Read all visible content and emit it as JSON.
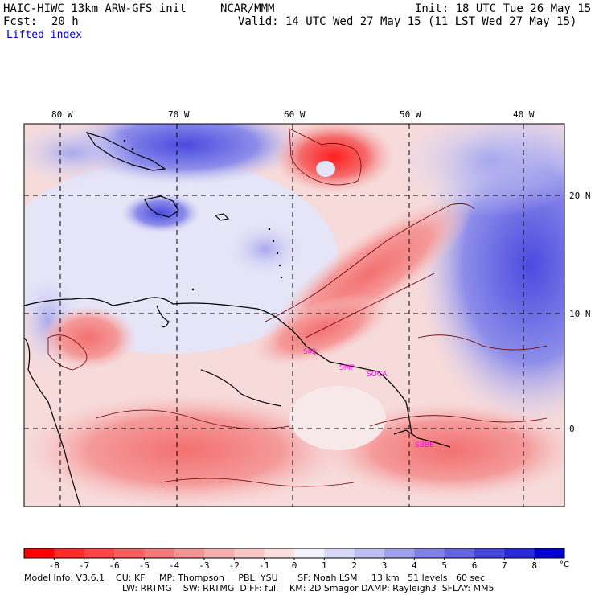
{
  "header": {
    "model_title": "HAIC-HIWC 13km ARW-GFS init",
    "institution": "NCAR/MMM",
    "init_time": "Init: 18 UTC Tue 26 May 15",
    "forecast_label": "Fcst:",
    "forecast_hours": "20 h",
    "valid_time": "Valid: 14 UTC Wed 27 May 15 (11 LST Wed 27 May 15)",
    "field_name": "Lifted index"
  },
  "map": {
    "longitude_labels": [
      "80 W",
      "70 W",
      "60 W",
      "50 W",
      "40 W"
    ],
    "latitude_labels": [
      "20 N",
      "10 N",
      "0"
    ],
    "stations": [
      "SMJ",
      "SMP",
      "SOCA",
      "SBBE"
    ],
    "colors": {
      "strong_negative": "#ff2020",
      "negative": "#f47a7a",
      "weak_negative": "#f9c0c0",
      "neutral": "#f4f2fb",
      "weak_positive": "#cfcff4",
      "positive": "#8c8ce9",
      "strong_positive": "#3a3ad8",
      "station_label": "#ff00ff"
    }
  },
  "colorbar": {
    "tick_labels": [
      "-8",
      "-7",
      "-6",
      "-5",
      "-4",
      "-3",
      "-2",
      "-1",
      "0",
      "1",
      "2",
      "3",
      "4",
      "5",
      "6",
      "7",
      "8"
    ],
    "unit": "°C",
    "colors": [
      "#ff0000",
      "#ff2a2a",
      "#ff4545",
      "#f95f5f",
      "#f47a7a",
      "#f49595",
      "#f6adad",
      "#f9c6c6",
      "#fbdede",
      "#f2f2fb",
      "#d8d8f6",
      "#bdbdf1",
      "#a0a0ec",
      "#8282e6",
      "#6464e0",
      "#4747da",
      "#2a2ad6",
      "#0000d0"
    ]
  },
  "footer": {
    "line1": "Model Info: V3.6.1    CU: KF     MP: Thompson     PBL: YSU       SF: Noah LSM     13 km   51 levels   60 sec",
    "line2": "LW: RRTMG    SW: RRTMG  DIFF: full    KM: 2D Smagor DAMP: Rayleigh3  SFLAY: MM5"
  }
}
